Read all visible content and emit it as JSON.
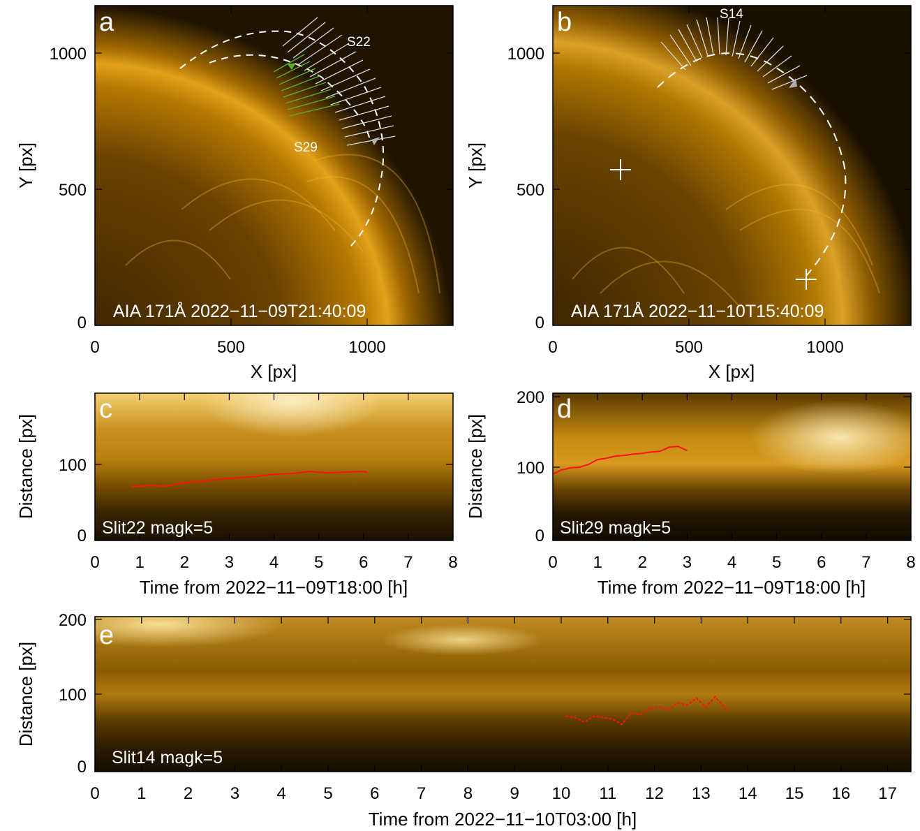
{
  "panels": {
    "a": {
      "letter": "a",
      "caption": "AIA 171Å 2022−11−09T21:40:09",
      "xlabel": "X [px]",
      "ylabel": "Y [px]",
      "xticks": [
        "0",
        "500",
        "1000"
      ],
      "yticks": [
        "0",
        "500",
        "1000"
      ],
      "slit_labels": [
        "S22",
        "S29"
      ]
    },
    "b": {
      "letter": "b",
      "caption": "AIA 171Å 2022−11−10T15:40:09",
      "xlabel": "X [px]",
      "ylabel": "Y [px]",
      "xticks": [
        "0",
        "500",
        "1000"
      ],
      "yticks": [
        "0",
        "500",
        "1000"
      ],
      "slit_labels": [
        "S14"
      ]
    },
    "c": {
      "letter": "c",
      "caption": "Slit22 magk=5",
      "xlabel": "Time from 2022−11−09T18:00 [h]",
      "ylabel": "Distance [px]",
      "xticks": [
        "0",
        "1",
        "2",
        "3",
        "4",
        "5",
        "6",
        "7",
        "8"
      ],
      "yticks": [
        "0",
        "100"
      ]
    },
    "d": {
      "letter": "d",
      "caption": "Slit29 magk=5",
      "xlabel": "Time from 2022−11−09T18:00 [h]",
      "ylabel": "Distance [px]",
      "xticks": [
        "0",
        "1",
        "2",
        "3",
        "4",
        "5",
        "6",
        "7",
        "8"
      ],
      "yticks": [
        "0",
        "100",
        "200"
      ]
    },
    "e": {
      "letter": "e",
      "caption": "Slit14 magk=5",
      "xlabel": "Time from 2022−11−10T03:00 [h]",
      "ylabel": "Distance [px]",
      "xticks": [
        "0",
        "1",
        "2",
        "3",
        "4",
        "5",
        "6",
        "7",
        "8",
        "9",
        "10",
        "11",
        "12",
        "13",
        "14",
        "15",
        "16",
        "17"
      ],
      "yticks": [
        "0",
        "100",
        "200"
      ]
    }
  },
  "colors": {
    "sdo_dark": "#1a1000",
    "sdo_mid": "#b07000",
    "sdo_bright": "#ffd060",
    "track_red": "#ff1010",
    "slit_green": "#5fae2a",
    "arrow_gray": "#b0b0b0"
  },
  "chart_data": [
    {
      "type": "line",
      "panel": "c",
      "xlabel": "Time from 2022−11−09T18:00 [h]",
      "ylabel": "Distance [px]",
      "xlim": [
        0,
        8
      ],
      "ylim": [
        0,
        195
      ],
      "series": [
        {
          "x": [
            0.8,
            1.2,
            1.6,
            2.0,
            2.4,
            2.8,
            3.2,
            3.6,
            4.0,
            4.4,
            4.8,
            5.2,
            5.6,
            6.0,
            6.1
          ],
          "y": [
            68,
            70,
            69,
            74,
            76,
            79,
            81,
            83,
            86,
            87,
            90,
            88,
            89,
            90,
            88
          ]
        }
      ]
    },
    {
      "type": "line",
      "panel": "d",
      "xlabel": "Time from 2022−11−09T18:00 [h]",
      "ylabel": "Distance [px]",
      "xlim": [
        0,
        8
      ],
      "ylim": [
        0,
        205
      ],
      "series": [
        {
          "x": [
            0.0,
            0.2,
            0.4,
            0.6,
            0.8,
            1.0,
            1.2,
            1.4,
            1.6,
            1.8,
            2.0,
            2.2,
            2.4,
            2.6,
            2.8,
            3.0
          ],
          "y": [
            88,
            94,
            97,
            98,
            102,
            109,
            111,
            114,
            115,
            117,
            118,
            120,
            121,
            127,
            128,
            122
          ]
        }
      ]
    },
    {
      "type": "line",
      "panel": "e",
      "xlabel": "Time from 2022−11−10T03:00 [h]",
      "ylabel": "Distance [px]",
      "xlim": [
        0,
        17.5
      ],
      "ylim": [
        0,
        205
      ],
      "series": [
        {
          "x": [
            10.1,
            10.3,
            10.5,
            10.7,
            10.9,
            11.1,
            11.3,
            11.5,
            11.7,
            11.9,
            12.1,
            12.3,
            12.5,
            12.7,
            12.9,
            13.1,
            13.3,
            13.5,
            13.6
          ],
          "y": [
            70,
            68,
            62,
            70,
            68,
            66,
            59,
            74,
            72,
            80,
            82,
            79,
            88,
            85,
            94,
            82,
            96,
            82,
            78
          ]
        }
      ]
    }
  ]
}
